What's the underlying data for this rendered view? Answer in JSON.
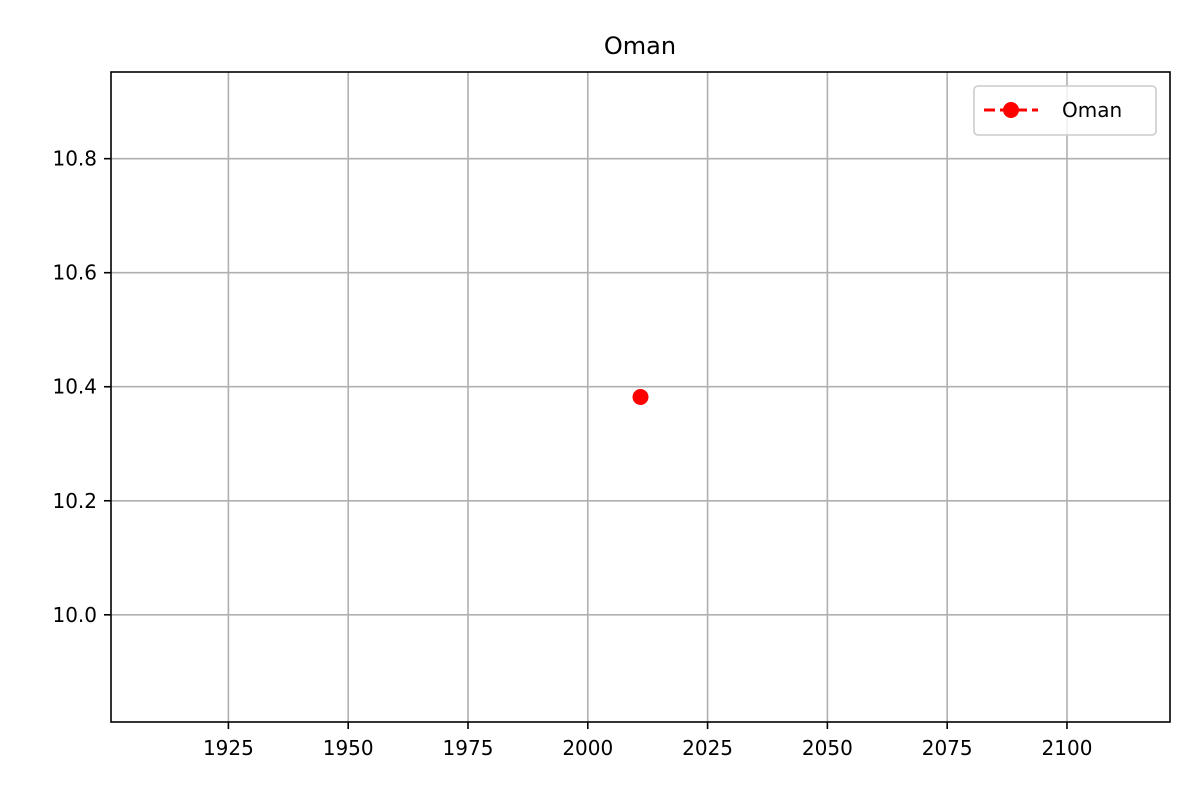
{
  "chart_data": {
    "type": "line",
    "title": "Oman",
    "xlabel": "",
    "ylabel": "",
    "xlim": [
      1900.5,
      2121.5
    ],
    "ylim": [
      9.812,
      10.952
    ],
    "x_ticks": [
      1925,
      1950,
      1975,
      2000,
      2025,
      2050,
      2075,
      2100
    ],
    "y_ticks": [
      10.0,
      10.2,
      10.4,
      10.6,
      10.8
    ],
    "x_tick_labels": [
      "1925",
      "1950",
      "1975",
      "2000",
      "2025",
      "2050",
      "2075",
      "2100"
    ],
    "y_tick_labels": [
      "10.0",
      "10.2",
      "10.4",
      "10.6",
      "10.8"
    ],
    "grid": true,
    "legend_position": "top-right",
    "series": [
      {
        "name": "Oman",
        "color": "#ff0000",
        "line_style": "dashed",
        "marker": "circle",
        "x": [
          2011
        ],
        "y": [
          10.382
        ]
      }
    ]
  }
}
